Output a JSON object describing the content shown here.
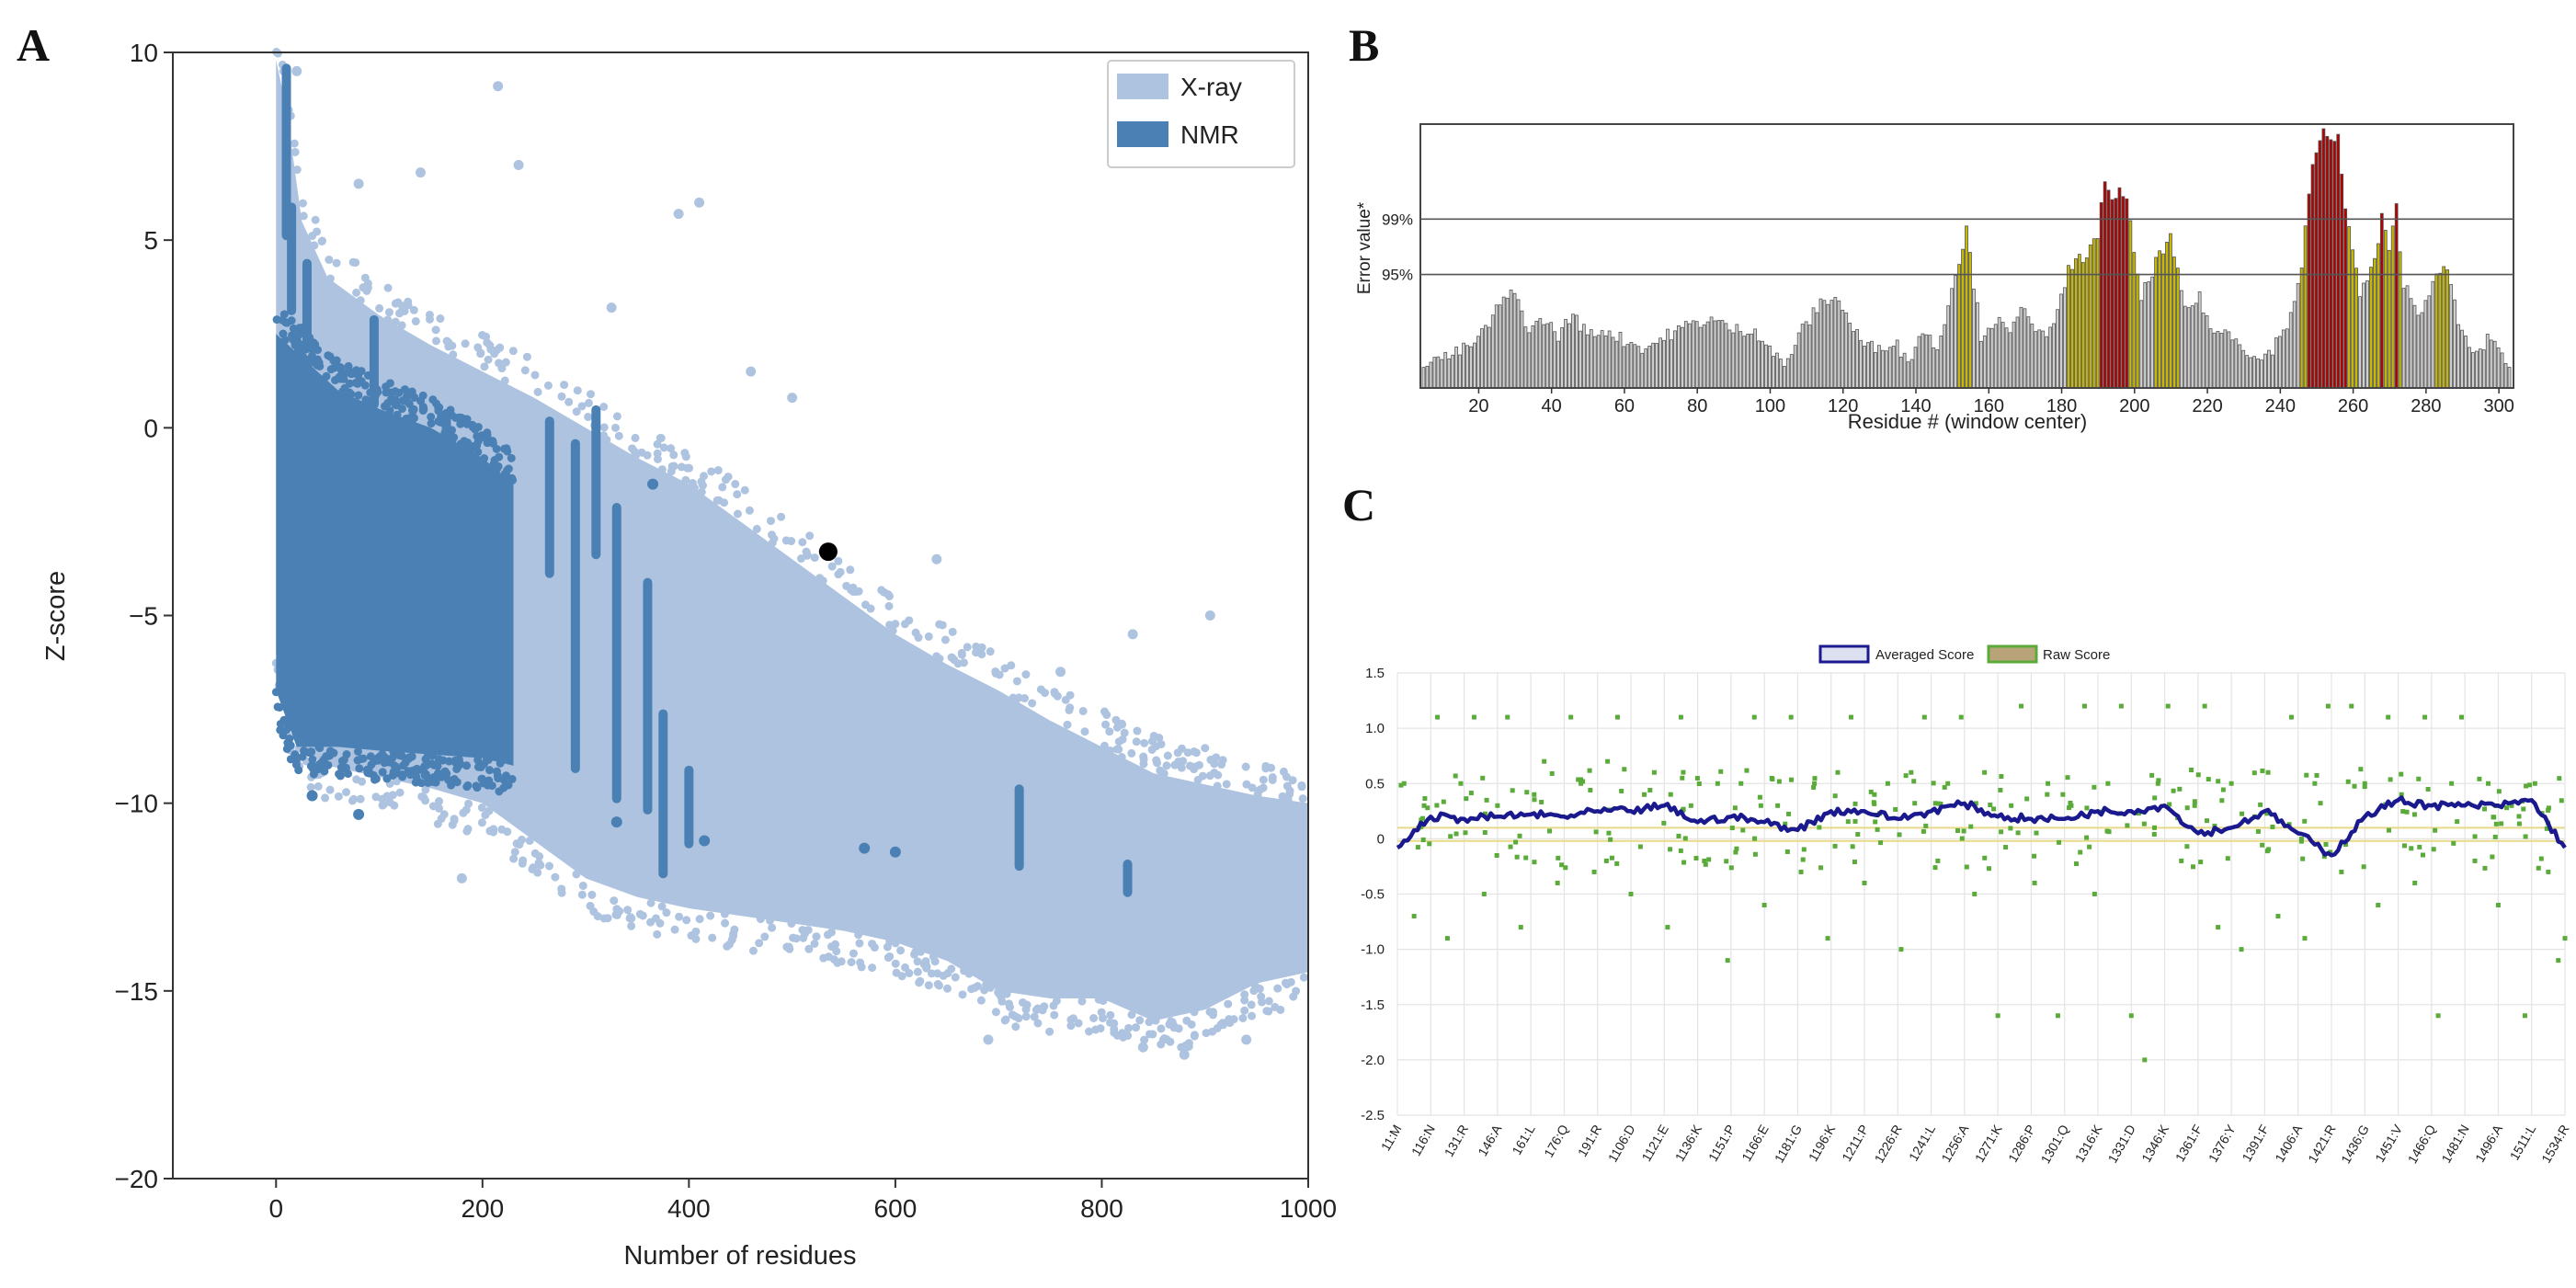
{
  "panels": {
    "a": "A",
    "b": "B",
    "c": "C"
  },
  "chart_data": [
    {
      "type": "scatter",
      "panel": "A",
      "xlabel": "Number of residues",
      "ylabel": "Z-score",
      "xlim": [
        -100,
        1000
      ],
      "ylim": [
        -20,
        10
      ],
      "x_ticks": [
        0,
        200,
        400,
        600,
        800,
        1000
      ],
      "x_tick_labels": [
        "0",
        "200",
        "400",
        "600",
        "800",
        "1000"
      ],
      "y_ticks": [
        -20,
        -15,
        -10,
        -5,
        0,
        5,
        10
      ],
      "y_tick_labels": [
        "−20",
        "−15",
        "−10",
        "−5",
        "0",
        "5",
        "10"
      ],
      "legend": [
        {
          "label": "X-ray",
          "color": "#aec3df"
        },
        {
          "label": "NMR",
          "color": "#4a80b4"
        }
      ],
      "legend_position": "top-right",
      "highlight_point": {
        "x": 535,
        "y": -3.3,
        "color": "#000000"
      },
      "xray_profile": [
        {
          "x": 0,
          "top": 9.8,
          "bottom": -6
        },
        {
          "x": 10,
          "top": 8.5,
          "bottom": -7.5
        },
        {
          "x": 25,
          "top": 5.5,
          "bottom": -8.6
        },
        {
          "x": 50,
          "top": 4.0,
          "bottom": -9.0
        },
        {
          "x": 100,
          "top": 3.0,
          "bottom": -9.3
        },
        {
          "x": 150,
          "top": 2.2,
          "bottom": -9.6
        },
        {
          "x": 200,
          "top": 1.5,
          "bottom": -10.0
        },
        {
          "x": 250,
          "top": 0.8,
          "bottom": -11.0
        },
        {
          "x": 300,
          "top": 0.0,
          "bottom": -12.0
        },
        {
          "x": 350,
          "top": -0.8,
          "bottom": -12.5
        },
        {
          "x": 400,
          "top": -1.5,
          "bottom": -12.8
        },
        {
          "x": 450,
          "top": -2.5,
          "bottom": -13.0
        },
        {
          "x": 500,
          "top": -3.5,
          "bottom": -13.2
        },
        {
          "x": 550,
          "top": -4.5,
          "bottom": -13.4
        },
        {
          "x": 600,
          "top": -5.5,
          "bottom": -13.7
        },
        {
          "x": 650,
          "top": -6.3,
          "bottom": -14.2
        },
        {
          "x": 700,
          "top": -7.0,
          "bottom": -15.0
        },
        {
          "x": 750,
          "top": -7.8,
          "bottom": -15.2
        },
        {
          "x": 800,
          "top": -8.5,
          "bottom": -15.2
        },
        {
          "x": 850,
          "top": -9.2,
          "bottom": -15.8
        },
        {
          "x": 900,
          "top": -9.5,
          "bottom": -15.5
        },
        {
          "x": 950,
          "top": -9.8,
          "bottom": -14.8
        },
        {
          "x": 1000,
          "top": -10.0,
          "bottom": -14.5
        }
      ],
      "xray_outliers": [
        [
          20,
          9.5
        ],
        [
          80,
          6.5
        ],
        [
          140,
          6.8
        ],
        [
          215,
          9.1
        ],
        [
          235,
          7.0
        ],
        [
          325,
          3.2
        ],
        [
          390,
          5.7
        ],
        [
          410,
          6.0
        ],
        [
          460,
          1.5
        ],
        [
          500,
          0.8
        ],
        [
          640,
          -3.5
        ],
        [
          760,
          -6.5
        ],
        [
          830,
          -5.5
        ],
        [
          905,
          -5.0
        ],
        [
          180,
          -12.0
        ],
        [
          690,
          -16.3
        ],
        [
          840,
          -16.5
        ],
        [
          880,
          -16.7
        ],
        [
          940,
          -16.3
        ]
      ],
      "nmr_profile": [
        {
          "x": 0,
          "top": 2.5,
          "bottom": -7.0
        },
        {
          "x": 20,
          "top": 2.0,
          "bottom": -8.5
        },
        {
          "x": 60,
          "top": 1.0,
          "bottom": -8.5
        },
        {
          "x": 100,
          "top": 0.5,
          "bottom": -8.6
        },
        {
          "x": 150,
          "top": 0.0,
          "bottom": -8.7
        },
        {
          "x": 200,
          "top": -0.8,
          "bottom": -8.8
        },
        {
          "x": 230,
          "top": -1.5,
          "bottom": -9.0
        }
      ],
      "nmr_spikes": [
        [
          10,
          9.7,
          5.0
        ],
        [
          15,
          6.0,
          3.0
        ],
        [
          30,
          4.5,
          2.0
        ],
        [
          95,
          3.0,
          0.5
        ],
        [
          165,
          0.5,
          -2.0
        ],
        [
          265,
          0.3,
          -4.0
        ],
        [
          290,
          -0.3,
          -9.2
        ],
        [
          310,
          0.6,
          -3.5
        ],
        [
          330,
          -2.0,
          -10.0
        ],
        [
          360,
          -4.0,
          -10.3
        ],
        [
          375,
          -7.5,
          -12.0
        ],
        [
          400,
          -9.0,
          -11.2
        ],
        [
          720,
          -9.5,
          -11.8
        ],
        [
          825,
          -11.5,
          -12.5
        ]
      ],
      "nmr_outliers": [
        [
          35,
          -9.8
        ],
        [
          80,
          -10.3
        ],
        [
          330,
          -10.5
        ],
        [
          365,
          -1.5
        ],
        [
          415,
          -11.0
        ],
        [
          570,
          -11.2
        ],
        [
          600,
          -11.3
        ]
      ]
    },
    {
      "type": "bar",
      "panel": "B",
      "xlabel": "Residue # (window center)",
      "ylabel": "Error value*",
      "reference_lines": [
        {
          "label": "99%",
          "value": 0.64
        },
        {
          "label": "95%",
          "value": 0.43
        }
      ],
      "xlim": [
        4,
        304
      ],
      "ylim": [
        0,
        1
      ],
      "x_ticks": [
        20,
        40,
        60,
        80,
        100,
        120,
        140,
        160,
        180,
        200,
        220,
        240,
        260,
        280,
        300
      ],
      "profile": [
        [
          5,
          0.1
        ],
        [
          12,
          0.12
        ],
        [
          18,
          0.16
        ],
        [
          22,
          0.22
        ],
        [
          26,
          0.32
        ],
        [
          30,
          0.36
        ],
        [
          34,
          0.22
        ],
        [
          38,
          0.26
        ],
        [
          42,
          0.2
        ],
        [
          46,
          0.28
        ],
        [
          50,
          0.2
        ],
        [
          55,
          0.22
        ],
        [
          60,
          0.18
        ],
        [
          66,
          0.15
        ],
        [
          72,
          0.2
        ],
        [
          78,
          0.24
        ],
        [
          84,
          0.26
        ],
        [
          90,
          0.22
        ],
        [
          96,
          0.22
        ],
        [
          100,
          0.15
        ],
        [
          104,
          0.08
        ],
        [
          108,
          0.2
        ],
        [
          114,
          0.32
        ],
        [
          118,
          0.35
        ],
        [
          122,
          0.25
        ],
        [
          126,
          0.16
        ],
        [
          130,
          0.15
        ],
        [
          134,
          0.18
        ],
        [
          138,
          0.1
        ],
        [
          142,
          0.22
        ],
        [
          146,
          0.15
        ],
        [
          150,
          0.38
        ],
        [
          154,
          0.6
        ],
        [
          158,
          0.2
        ],
        [
          162,
          0.26
        ],
        [
          166,
          0.2
        ],
        [
          170,
          0.32
        ],
        [
          174,
          0.2
        ],
        [
          178,
          0.22
        ],
        [
          182,
          0.45
        ],
        [
          186,
          0.5
        ],
        [
          190,
          0.56
        ],
        [
          192,
          0.8
        ],
        [
          194,
          0.72
        ],
        [
          196,
          0.74
        ],
        [
          198,
          0.7
        ],
        [
          202,
          0.34
        ],
        [
          206,
          0.48
        ],
        [
          210,
          0.56
        ],
        [
          214,
          0.3
        ],
        [
          218,
          0.34
        ],
        [
          222,
          0.2
        ],
        [
          226,
          0.22
        ],
        [
          230,
          0.16
        ],
        [
          234,
          0.1
        ],
        [
          238,
          0.15
        ],
        [
          242,
          0.24
        ],
        [
          246,
          0.44
        ],
        [
          248,
          0.75
        ],
        [
          250,
          0.9
        ],
        [
          252,
          0.98
        ],
        [
          254,
          0.92
        ],
        [
          256,
          0.95
        ],
        [
          258,
          0.7
        ],
        [
          262,
          0.35
        ],
        [
          266,
          0.48
        ],
        [
          268,
          0.64
        ],
        [
          270,
          0.52
        ],
        [
          272,
          0.68
        ],
        [
          274,
          0.4
        ],
        [
          278,
          0.28
        ],
        [
          282,
          0.4
        ],
        [
          286,
          0.45
        ],
        [
          290,
          0.2
        ],
        [
          294,
          0.12
        ],
        [
          298,
          0.2
        ],
        [
          302,
          0.1
        ]
      ],
      "colors": {
        "normal": "#d0d0d0",
        "above_95": "#c8b900",
        "above_99": "#b00000"
      }
    },
    {
      "type": "line",
      "panel": "C",
      "legend": [
        {
          "label": "Averaged Score",
          "color": "#1a1a8e"
        },
        {
          "label": "Raw Score",
          "color": "#5aab3a"
        }
      ],
      "legend_position": "top-center",
      "ylim": [
        -2.5,
        1.5
      ],
      "y_ticks": [
        1.5,
        1.0,
        0.5,
        0.0,
        -0.5,
        -1.0,
        -1.5,
        -2.0,
        -2.5
      ],
      "y_tick_labels": [
        "1.5",
        "1.0",
        "0.5",
        "0",
        "-0.5",
        "-1.0",
        "-1.5",
        "-2.0",
        "-2.5"
      ],
      "x_tick_labels": [
        "11:M",
        "116:N",
        "131:R",
        "146:A",
        "161:L",
        "176:Q",
        "191:R",
        "1106:D",
        "1121:E",
        "1136:K",
        "1151:P",
        "1166:E",
        "1181:G",
        "1196:K",
        "1211:P",
        "1226:R",
        "1241:L",
        "1256:A",
        "1271:K",
        "1286:P",
        "1301:Q",
        "1316:K",
        "1331:D",
        "1346:K",
        "1361:F",
        "1376:Y",
        "1391:F",
        "1406:A",
        "1421:R",
        "1436:G",
        "1451:V",
        "1466:Q",
        "1481:N",
        "1496:A",
        "1511:L",
        "1534:R"
      ],
      "averaged_score": [
        [
          0,
          -0.08
        ],
        [
          1,
          0.2
        ],
        [
          2,
          0.18
        ],
        [
          3,
          0.2
        ],
        [
          4,
          0.22
        ],
        [
          5,
          0.2
        ],
        [
          6,
          0.25
        ],
        [
          7,
          0.25
        ],
        [
          8,
          0.3
        ],
        [
          9,
          0.15
        ],
        [
          10,
          0.2
        ],
        [
          11,
          0.15
        ],
        [
          12,
          0.08
        ],
        [
          13,
          0.25
        ],
        [
          14,
          0.25
        ],
        [
          15,
          0.18
        ],
        [
          16,
          0.25
        ],
        [
          17,
          0.32
        ],
        [
          18,
          0.2
        ],
        [
          19,
          0.18
        ],
        [
          20,
          0.18
        ],
        [
          21,
          0.25
        ],
        [
          22,
          0.25
        ],
        [
          23,
          0.3
        ],
        [
          24,
          0.05
        ],
        [
          25,
          0.1
        ],
        [
          26,
          0.25
        ],
        [
          27,
          0.05
        ],
        [
          28,
          -0.15
        ],
        [
          29,
          0.2
        ],
        [
          30,
          0.35
        ],
        [
          31,
          0.3
        ],
        [
          32,
          0.3
        ],
        [
          33,
          0.3
        ],
        [
          34,
          0.35
        ],
        [
          35,
          -0.08
        ]
      ],
      "raw_score_points": [
        [
          0.2,
          0.5
        ],
        [
          0.5,
          -0.7
        ],
        [
          0.8,
          0.3
        ],
        [
          1.2,
          1.1
        ],
        [
          1.5,
          -0.9
        ],
        [
          1.9,
          0.5
        ],
        [
          2.3,
          1.1
        ],
        [
          2.6,
          -0.5
        ],
        [
          3.0,
          0.3
        ],
        [
          3.3,
          1.1
        ],
        [
          3.7,
          -0.8
        ],
        [
          4.1,
          0.4
        ],
        [
          4.4,
          0.7
        ],
        [
          4.8,
          -0.4
        ],
        [
          5.2,
          1.1
        ],
        [
          5.5,
          0.5
        ],
        [
          5.9,
          -0.3
        ],
        [
          6.3,
          0.7
        ],
        [
          6.6,
          1.1
        ],
        [
          7.0,
          -0.5
        ],
        [
          7.4,
          0.4
        ],
        [
          7.7,
          0.6
        ],
        [
          8.1,
          -0.8
        ],
        [
          8.5,
          1.1
        ],
        [
          8.8,
          0.3
        ],
        [
          9.2,
          -0.2
        ],
        [
          9.6,
          0.5
        ],
        [
          9.9,
          -1.1
        ],
        [
          10.3,
          0.5
        ],
        [
          10.7,
          1.1
        ],
        [
          11.0,
          -0.6
        ],
        [
          11.4,
          0.3
        ],
        [
          11.8,
          1.1
        ],
        [
          12.1,
          -0.3
        ],
        [
          12.5,
          0.5
        ],
        [
          12.9,
          -0.9
        ],
        [
          13.2,
          0.6
        ],
        [
          13.6,
          1.1
        ],
        [
          14.0,
          -0.4
        ],
        [
          14.3,
          0.4
        ],
        [
          14.7,
          0.5
        ],
        [
          15.1,
          -1.0
        ],
        [
          15.4,
          0.6
        ],
        [
          15.8,
          1.1
        ],
        [
          16.2,
          -0.2
        ],
        [
          16.5,
          0.5
        ],
        [
          16.9,
          1.1
        ],
        [
          17.3,
          -0.5
        ],
        [
          17.6,
          0.6
        ],
        [
          18.0,
          -1.6
        ],
        [
          18.4,
          0.3
        ],
        [
          18.7,
          1.2
        ],
        [
          19.1,
          -0.4
        ],
        [
          19.5,
          0.5
        ],
        [
          19.8,
          -1.6
        ],
        [
          20.2,
          0.3
        ],
        [
          20.6,
          1.2
        ],
        [
          20.9,
          -0.5
        ],
        [
          21.3,
          0.5
        ],
        [
          21.7,
          1.2
        ],
        [
          22.0,
          -1.6
        ],
        [
          22.4,
          -2.0
        ],
        [
          22.8,
          0.5
        ],
        [
          23.1,
          1.2
        ],
        [
          23.5,
          -0.2
        ],
        [
          23.9,
          0.3
        ],
        [
          24.2,
          1.2
        ],
        [
          24.6,
          -0.8
        ],
        [
          25.0,
          0.5
        ],
        [
          25.3,
          -1.0
        ],
        [
          25.7,
          0.2
        ],
        [
          26.1,
          0.6
        ],
        [
          26.4,
          -0.7
        ],
        [
          26.8,
          1.1
        ],
        [
          27.2,
          -0.9
        ],
        [
          27.5,
          0.5
        ],
        [
          27.9,
          1.2
        ],
        [
          28.3,
          -0.3
        ],
        [
          28.6,
          1.2
        ],
        [
          29.0,
          0.5
        ],
        [
          29.4,
          -0.6
        ],
        [
          29.7,
          1.1
        ],
        [
          30.1,
          0.4
        ],
        [
          30.5,
          -0.4
        ],
        [
          30.8,
          1.1
        ],
        [
          31.2,
          -1.6
        ],
        [
          31.6,
          0.5
        ],
        [
          31.9,
          1.1
        ],
        [
          32.3,
          -0.2
        ],
        [
          32.7,
          0.5
        ],
        [
          33.0,
          -0.6
        ],
        [
          33.4,
          0.3
        ],
        [
          33.8,
          -1.6
        ],
        [
          34.1,
          0.5
        ],
        [
          34.5,
          -0.3
        ],
        [
          34.8,
          -1.1
        ],
        [
          35.0,
          -0.9
        ]
      ],
      "reference_line": 0.0
    }
  ]
}
